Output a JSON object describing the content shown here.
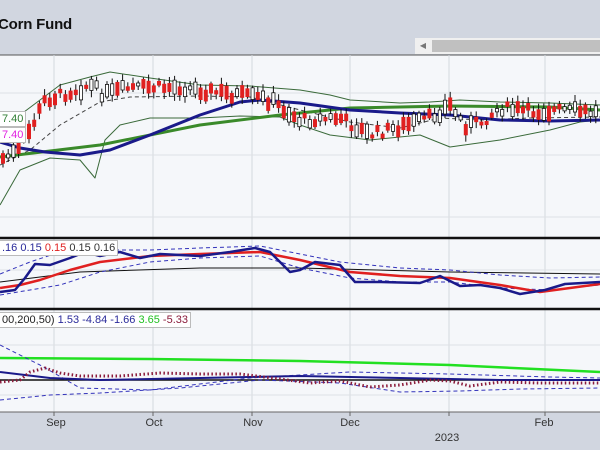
{
  "header": {
    "title": "Corn Fund"
  },
  "scrollbar": {
    "left_icon": "chevron-left-icon"
  },
  "price_pane": {
    "labels": [
      {
        "text": "7.40",
        "color": "#2e7d32"
      },
      {
        "text": "7.40",
        "color": "#e020e0"
      }
    ]
  },
  "middle_pane": {
    "legend": [
      {
        "text": ".16",
        "color": "#2a2a9a"
      },
      {
        "text": "0.15",
        "color": "#2a2a9a"
      },
      {
        "text": "0.15",
        "color": "#e02020"
      },
      {
        "text": "0.15",
        "color": "#333333"
      },
      {
        "text": "0.16",
        "color": "#333333"
      }
    ]
  },
  "bottom_pane": {
    "legend": [
      {
        "text": "00,200,50)",
        "color": "#222222"
      },
      {
        "text": "1.53",
        "color": "#2a2a9a"
      },
      {
        "text": "-4.84",
        "color": "#2a2a9a"
      },
      {
        "text": "-1.66",
        "color": "#2a2a9a"
      },
      {
        "text": "3.65",
        "color": "#22c022"
      },
      {
        "text": "-5.33",
        "color": "#8a1a3a"
      }
    ]
  },
  "chart_data": {
    "type": "candlestick",
    "title": "Corn Fund",
    "x_ticks": [
      "Sep",
      "Oct",
      "Nov",
      "Dec",
      "2023",
      "Feb"
    ],
    "series": [
      {
        "name": "price",
        "type": "candlestick"
      },
      {
        "name": "moving average (blue)",
        "color": "#1a1a8a"
      },
      {
        "name": "moving average (green)",
        "color": "#3a8a2a"
      },
      {
        "name": "bollinger bands",
        "color": "#3a6a3a"
      }
    ],
    "last_values": {
      "price_labels": [
        7.4,
        7.4
      ],
      "middle": [
        0.16,
        0.15,
        0.15,
        0.15,
        0.16
      ],
      "bottom": [
        1.53,
        -4.84,
        -1.66,
        3.65,
        -5.33
      ]
    },
    "colors": {
      "up": "#ffffff",
      "down": "#e02020",
      "ma_blue": "#1a1a8a",
      "ma_green": "#3a8a2a"
    },
    "grid": true
  }
}
